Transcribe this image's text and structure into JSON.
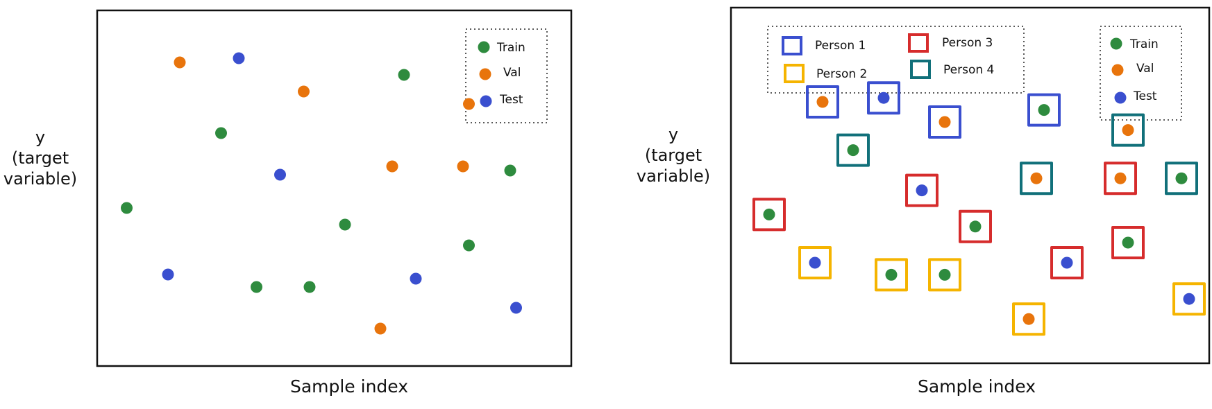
{
  "colors": {
    "train": "#2e8b3e",
    "val": "#e8740c",
    "test": "#3a4fcf",
    "person1": "#3a4fcf",
    "person2": "#f5b400",
    "person3": "#d62c2c",
    "person4": "#11707a"
  },
  "left_panel": {
    "ylabel": [
      "y",
      "(target",
      "variable)"
    ],
    "xlabel": "Sample index",
    "legend": [
      {
        "key": "train",
        "label": "Train"
      },
      {
        "key": "val",
        "label": "Val"
      },
      {
        "key": "test",
        "label": "Test"
      }
    ]
  },
  "right_panel": {
    "ylabel": [
      "y",
      "(target",
      "variable)"
    ],
    "xlabel": "Sample index",
    "legend_sets": [
      {
        "key": "train",
        "label": "Train"
      },
      {
        "key": "val",
        "label": "Val"
      },
      {
        "key": "test",
        "label": "Test"
      }
    ],
    "legend_persons": [
      {
        "key": "person1",
        "label": "Person 1"
      },
      {
        "key": "person2",
        "label": "Person 2"
      },
      {
        "key": "person3",
        "label": "Person 3"
      },
      {
        "key": "person4",
        "label": "Person 4"
      }
    ]
  },
  "chart_data": [
    {
      "type": "scatter",
      "xlabel": "Sample index",
      "ylabel": "y (target variable)",
      "points": [
        {
          "x": 0.5,
          "y": 3.8,
          "set": "train"
        },
        {
          "x": 1.2,
          "y": 2.2,
          "set": "test"
        },
        {
          "x": 1.4,
          "y": 7.3,
          "set": "val"
        },
        {
          "x": 2.1,
          "y": 5.6,
          "set": "train"
        },
        {
          "x": 2.4,
          "y": 7.4,
          "set": "test"
        },
        {
          "x": 2.7,
          "y": 1.9,
          "set": "train"
        },
        {
          "x": 3.1,
          "y": 4.6,
          "set": "test"
        },
        {
          "x": 3.5,
          "y": 6.6,
          "set": "val"
        },
        {
          "x": 3.6,
          "y": 1.9,
          "set": "train"
        },
        {
          "x": 4.2,
          "y": 3.4,
          "set": "train"
        },
        {
          "x": 4.8,
          "y": 0.9,
          "set": "val"
        },
        {
          "x": 5.0,
          "y": 4.8,
          "set": "val"
        },
        {
          "x": 5.2,
          "y": 7.0,
          "set": "train"
        },
        {
          "x": 5.4,
          "y": 2.1,
          "set": "test"
        },
        {
          "x": 6.2,
          "y": 4.8,
          "set": "val"
        },
        {
          "x": 6.3,
          "y": 6.3,
          "set": "val"
        },
        {
          "x": 6.3,
          "y": 2.9,
          "set": "train"
        },
        {
          "x": 7.0,
          "y": 4.7,
          "set": "train"
        },
        {
          "x": 7.1,
          "y": 1.4,
          "set": "test"
        }
      ]
    },
    {
      "type": "scatter",
      "xlabel": "Sample index",
      "ylabel": "y (target variable)",
      "points": [
        {
          "x": 0.5,
          "y": 3.7,
          "set": "train",
          "person": "person3"
        },
        {
          "x": 1.1,
          "y": 2.5,
          "set": "test",
          "person": "person2"
        },
        {
          "x": 1.2,
          "y": 6.5,
          "set": "val",
          "person": "person1"
        },
        {
          "x": 1.6,
          "y": 5.3,
          "set": "train",
          "person": "person4"
        },
        {
          "x": 2.0,
          "y": 6.6,
          "set": "test",
          "person": "person1"
        },
        {
          "x": 2.1,
          "y": 2.2,
          "set": "train",
          "person": "person2"
        },
        {
          "x": 2.5,
          "y": 4.3,
          "set": "test",
          "person": "person3"
        },
        {
          "x": 2.8,
          "y": 6.0,
          "set": "val",
          "person": "person1"
        },
        {
          "x": 2.8,
          "y": 2.2,
          "set": "train",
          "person": "person2"
        },
        {
          "x": 3.2,
          "y": 3.4,
          "set": "train",
          "person": "person3"
        },
        {
          "x": 3.9,
          "y": 1.1,
          "set": "val",
          "person": "person2"
        },
        {
          "x": 4.0,
          "y": 4.6,
          "set": "val",
          "person": "person4"
        },
        {
          "x": 4.1,
          "y": 6.3,
          "set": "train",
          "person": "person1"
        },
        {
          "x": 4.4,
          "y": 2.5,
          "set": "test",
          "person": "person3"
        },
        {
          "x": 5.1,
          "y": 4.6,
          "set": "val",
          "person": "person3"
        },
        {
          "x": 5.2,
          "y": 5.8,
          "set": "val",
          "person": "person4"
        },
        {
          "x": 5.2,
          "y": 3.0,
          "set": "train",
          "person": "person3"
        },
        {
          "x": 5.9,
          "y": 4.6,
          "set": "train",
          "person": "person4"
        },
        {
          "x": 6.0,
          "y": 1.6,
          "set": "test",
          "person": "person2"
        }
      ]
    }
  ]
}
